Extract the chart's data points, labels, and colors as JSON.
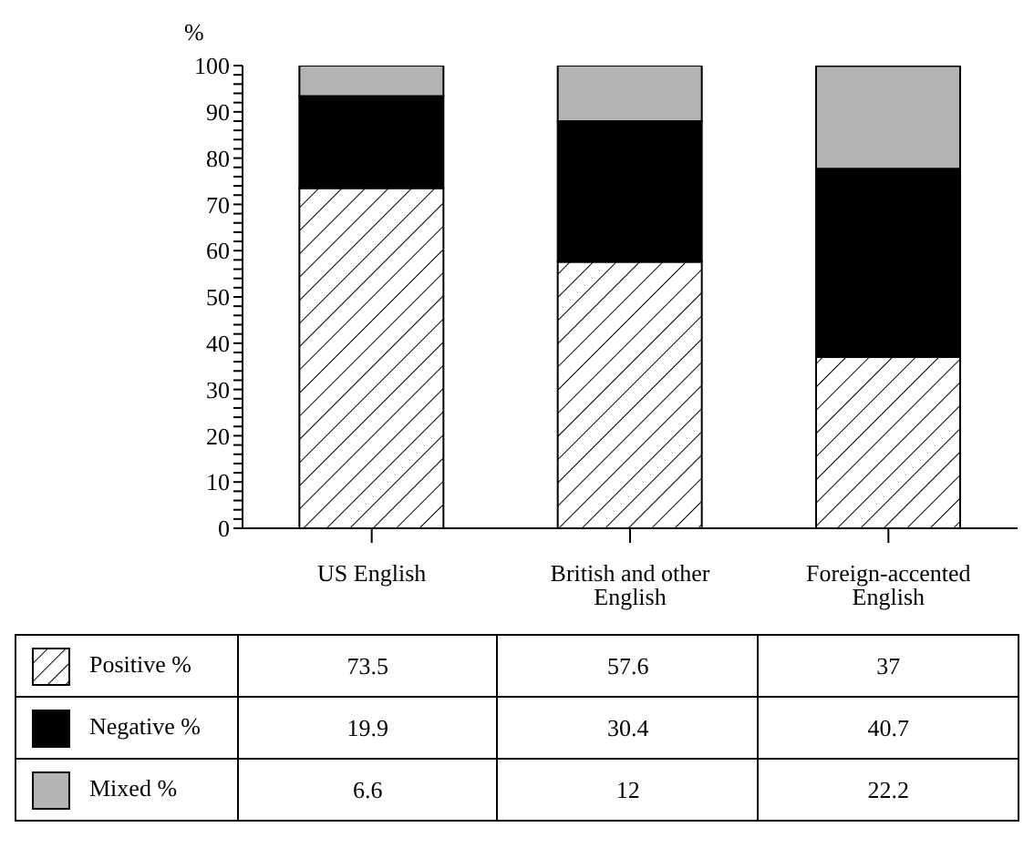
{
  "chart_data": {
    "type": "bar",
    "stacked": true,
    "ylabel": "%",
    "categories": [
      "US English",
      "British and other English",
      "Foreign-accented English"
    ],
    "series": [
      {
        "name": "Positive %",
        "color": "#ffffff",
        "values": [
          73.5,
          57.6,
          37
        ]
      },
      {
        "name": "Negative %",
        "color": "#000000",
        "values": [
          19.9,
          30.4,
          40.7
        ]
      },
      {
        "name": "Mixed %",
        "color": "#b3b3b3",
        "values": [
          6.6,
          12,
          22.2
        ]
      }
    ],
    "ylim": [
      0,
      100
    ],
    "yticks": [
      0,
      {
        "value": 2,
        "label": null
      },
      {
        "value": 4,
        "label": null
      },
      {
        "value": 6,
        "label": null
      },
      {
        "value": 8,
        "label": null
      },
      10,
      {
        "value": 12,
        "label": null
      },
      {
        "value": 14,
        "label": null
      },
      {
        "value": 16,
        "label": null
      },
      {
        "value": 18,
        "label": null
      },
      20,
      {
        "value": 22,
        "label": null
      },
      {
        "value": 24,
        "label": null
      },
      {
        "value": 26,
        "label": null
      },
      {
        "value": 28,
        "label": null
      },
      30,
      {
        "value": 32,
        "label": null
      },
      {
        "value": 34,
        "label": null
      },
      {
        "value": 36,
        "label": null
      },
      {
        "value": 38,
        "label": null
      },
      40,
      {
        "value": 42,
        "label": null
      },
      {
        "value": 44,
        "label": null
      },
      {
        "value": 46,
        "label": null
      },
      {
        "value": 48,
        "label": null
      },
      50,
      {
        "value": 52,
        "label": null
      },
      {
        "value": 54,
        "label": null
      },
      {
        "value": 56,
        "label": null
      },
      {
        "value": 58,
        "label": null
      },
      60,
      {
        "value": 62,
        "label": null
      },
      {
        "value": 64,
        "label": null
      },
      {
        "value": 66,
        "label": null
      },
      {
        "value": 68,
        "label": null
      },
      70,
      {
        "value": 72,
        "label": null
      },
      {
        "value": 74,
        "label": null
      },
      {
        "value": 76,
        "label": null
      },
      {
        "value": 78,
        "label": null
      },
      80,
      {
        "value": 82,
        "label": null
      },
      {
        "value": 84,
        "label": null
      },
      {
        "value": 86,
        "label": null
      },
      {
        "value": 88,
        "label": null
      },
      90,
      {
        "value": 92,
        "label": null
      },
      {
        "value": 94,
        "label": null
      },
      {
        "value": 96,
        "label": null
      },
      {
        "value": 98,
        "label": null
      },
      100
    ],
    "grid": false,
    "legend": "bottom",
    "data_labels": true
  }
}
